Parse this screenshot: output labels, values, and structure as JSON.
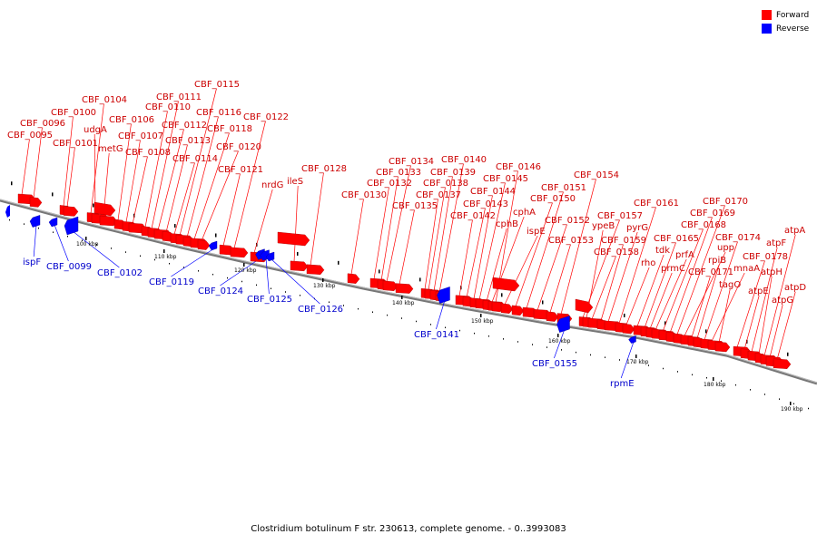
{
  "legend": {
    "forward": {
      "label": "Forward",
      "color": "#ff0000"
    },
    "reverse": {
      "label": "Reverse",
      "color": "#0000ff"
    }
  },
  "caption": "Clostridium botulinum F str. 230613, complete genome. - 0..3993083",
  "ticks": [
    "100 kbp",
    "110 kbp",
    "120 kbp",
    "130 kbp",
    "140 kbp",
    "150 kbp",
    "160 kbp",
    "170 kbp",
    "180 kbp",
    "190 kbp"
  ],
  "forward_genes": [
    "CBF_0095",
    "CBF_0096",
    "CBF_0100",
    "CBF_0101",
    "CBF_0104",
    "udgA",
    "metG",
    "CBF_0106",
    "CBF_0107",
    "CBF_0108",
    "CBF_0110",
    "CBF_0111",
    "CBF_0112",
    "CBF_0113",
    "CBF_0114",
    "CBF_0115",
    "CBF_0116",
    "CBF_0118",
    "CBF_0120",
    "CBF_0121",
    "CBF_0122",
    "nrdG",
    "ileS",
    "CBF_0128",
    "CBF_0130",
    "CBF_0132",
    "CBF_0133",
    "CBF_0134",
    "CBF_0135",
    "CBF_0137",
    "CBF_0138",
    "CBF_0139",
    "CBF_0140",
    "CBF_0142",
    "CBF_0143",
    "CBF_0144",
    "CBF_0145",
    "cphB",
    "cphA",
    "CBF_0146",
    "ispE",
    "CBF_0150",
    "CBF_0151",
    "CBF_0152",
    "CBF_0153",
    "CBF_0154",
    "CBF_0157",
    "ypeB",
    "CBF_0158",
    "CBF_0159",
    "pyrG",
    "CBF_0161",
    "rho",
    "tdk",
    "CBF_0165",
    "prmC",
    "prfA",
    "CBF_0168",
    "CBF_0169",
    "CBF_0170",
    "upp",
    "CBF_0171",
    "rpiB",
    "CBF_0174",
    "mnaA",
    "tagO",
    "CBF_0178",
    "atpE",
    "atpF",
    "atpH",
    "atpA",
    "atpG",
    "atpD"
  ],
  "reverse_genes": [
    "ispF",
    "CBF_0099",
    "CBF_0102",
    "CBF_0119",
    "CBF_0124",
    "CBF_0125",
    "CBF_0126",
    "CBF_0141",
    "CBF_0155",
    "rpmE"
  ]
}
